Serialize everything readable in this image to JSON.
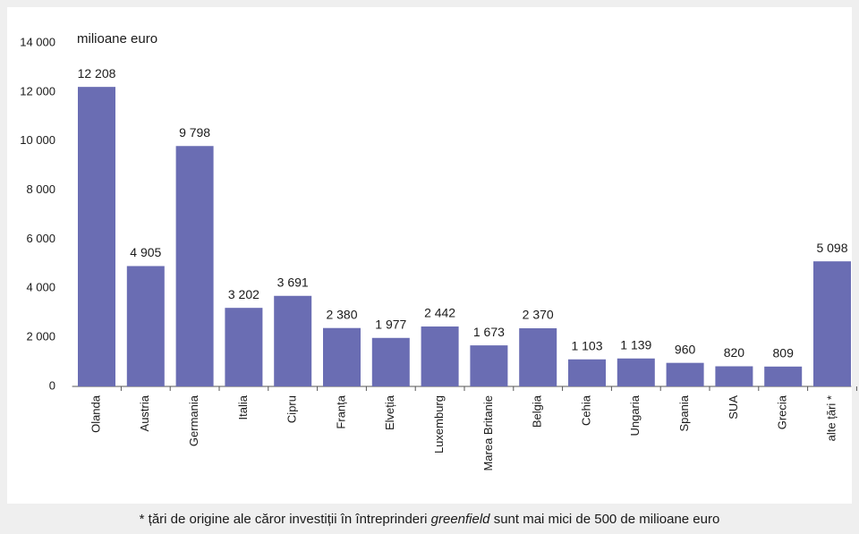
{
  "chart_data": {
    "type": "bar",
    "axis_label": "milioane euro",
    "categories": [
      "Olanda",
      "Austria",
      "Germania",
      "Italia",
      "Cipru",
      "Franța",
      "Elveția",
      "Luxemburg",
      "Marea Britanie",
      "Belgia",
      "Cehia",
      "Ungaria",
      "Spania",
      "SUA",
      "Grecia",
      "alte țări *"
    ],
    "values": [
      12208,
      4905,
      9798,
      3202,
      3691,
      2380,
      1977,
      2442,
      1673,
      2370,
      1103,
      1139,
      960,
      820,
      809,
      5098
    ],
    "value_labels": [
      "12 208",
      "4 905",
      "9 798",
      "3 202",
      "3 691",
      "2 380",
      "1 977",
      "2 442",
      "1 673",
      "2 370",
      "1 103",
      "1 139",
      "960",
      "820",
      "809",
      "5 098"
    ],
    "color": "#6a6db3",
    "ylim": [
      0,
      14000
    ],
    "yticks": [
      0,
      {
        "value": 2000,
        "label": "2 000"
      },
      {
        "value": 4000,
        "label": "4 000"
      },
      {
        "value": 6000,
        "label": "6 000"
      },
      {
        "value": 8000,
        "label": "8 000"
      },
      {
        "value": 10000,
        "label": "10 000"
      },
      {
        "value": 12000,
        "label": "12 000"
      },
      {
        "value": 14000,
        "label": "14 000"
      }
    ],
    "grid": false,
    "footnote": {
      "before": "* țări de origine ale căror investiții în întreprinderi ",
      "emphasis": "greenfield",
      "after": " sunt mai mici de 500 de milioane euro"
    }
  }
}
